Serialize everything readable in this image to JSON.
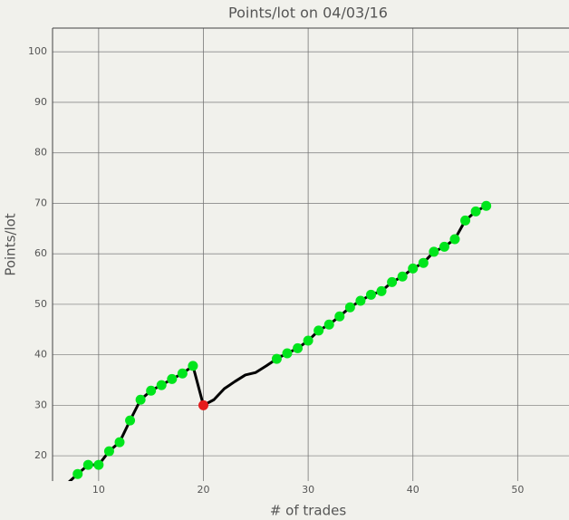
{
  "chart_data": {
    "type": "line",
    "title": "Points/lot on 04/03/16",
    "x_label": "# of trades",
    "y_label": "Points/lot",
    "x": [
      7,
      8,
      9,
      10,
      11,
      12,
      13,
      14,
      15,
      16,
      17,
      18,
      19,
      20,
      21,
      22,
      23,
      24,
      25,
      26,
      27,
      28,
      29,
      30,
      31,
      32,
      33,
      34,
      35,
      36,
      37,
      38,
      39,
      40,
      41,
      42,
      43,
      44,
      45,
      46,
      47
    ],
    "series": [
      {
        "color": "#000000",
        "values": [
          14.5,
          16.4,
          18.2,
          18.2,
          20.9,
          22.7,
          27.0,
          31.1,
          32.9,
          34.0,
          35.2,
          36.3,
          37.8,
          30.0,
          31.1,
          33.3,
          34.7,
          36.0,
          36.5,
          37.8,
          39.2,
          40.3,
          41.3,
          42.8,
          44.8,
          46.0,
          47.6,
          49.4,
          50.7,
          51.9,
          52.6,
          54.4,
          55.5,
          57.1,
          58.2,
          60.4,
          61.4,
          62.9,
          66.6,
          68.4,
          69.5
        ],
        "point_colors": [
          null,
          "#00e51c",
          "#00e51c",
          "#00e51c",
          "#00e51c",
          "#00e51c",
          "#00e51c",
          "#00e51c",
          "#00e51c",
          "#00e51c",
          "#00e51c",
          "#00e51c",
          "#00e51c",
          "#e51c1c",
          null,
          null,
          null,
          null,
          null,
          null,
          "#00e51c",
          "#00e51c",
          "#00e51c",
          "#00e51c",
          "#00e51c",
          "#00e51c",
          "#00e51c",
          "#00e51c",
          "#00e51c",
          "#00e51c",
          "#00e51c",
          "#00e51c",
          "#00e51c",
          "#00e51c",
          "#00e51c",
          "#00e51c",
          "#00e51c",
          "#00e51c",
          "#00e51c",
          "#00e51c",
          "#00e51c"
        ]
      }
    ],
    "xlim": [
      5.6,
      54.9
    ],
    "ylim": [
      15,
      104.7
    ],
    "xticks": [
      10,
      20,
      30,
      40,
      50
    ],
    "yticks": [
      20,
      30,
      40,
      50,
      60,
      70,
      80,
      90,
      100
    ],
    "grid": true
  }
}
